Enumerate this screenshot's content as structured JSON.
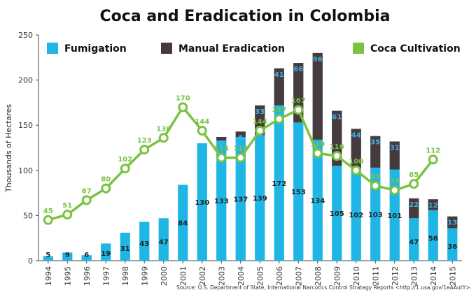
{
  "chart_data": {
    "type": "bar",
    "title": "Coca and Eradication in Colombia",
    "ylabel": "Thousands of Hectares",
    "xlabel": "",
    "ylim": [
      0,
      250
    ],
    "yticks": [
      0,
      50,
      100,
      150,
      200,
      250
    ],
    "categories": [
      "1994",
      "1995",
      "1996",
      "1997",
      "1998",
      "1999",
      "2000",
      "2001",
      "2002",
      "2003",
      "2004",
      "2005",
      "2006",
      "2007",
      "2008",
      "2009",
      "2010",
      "2011",
      "2012",
      "2013",
      "2014",
      "2015"
    ],
    "series": [
      {
        "name": "Fumigation",
        "kind": "bar-stack-bottom",
        "color": "#1fb6e6",
        "values": [
          5,
          9,
          6,
          19,
          31,
          43,
          47,
          84,
          130,
          133,
          137,
          139,
          172,
          153,
          134,
          105,
          102,
          103,
          101,
          47,
          56,
          36
        ],
        "labels": [
          "5",
          "9",
          "6",
          "19",
          "31",
          "43",
          "47",
          "84",
          "130",
          "133",
          "137",
          "139",
          "172",
          "153",
          "134",
          "105",
          "102",
          "103",
          "101",
          "47",
          "56",
          "36"
        ]
      },
      {
        "name": "Manual Eradication",
        "kind": "bar-stack-top",
        "color": "#453a3d",
        "values": [
          0,
          0,
          0,
          0,
          0,
          0,
          0,
          0,
          0,
          4,
          6,
          33,
          41,
          66,
          96,
          61,
          44,
          35,
          31,
          22,
          12,
          13
        ],
        "labels": [
          "",
          "",
          "",
          "",
          "",
          "",
          "",
          "",
          "",
          "4",
          "6",
          "33",
          "41",
          "66",
          "96",
          "61",
          "44",
          "35",
          "31",
          "22",
          "12",
          "13"
        ]
      },
      {
        "name": "Coca Cultivation",
        "kind": "line",
        "color": "#7cc242",
        "values": [
          45,
          51,
          67,
          80,
          102,
          123,
          136,
          170,
          144,
          114,
          114,
          144,
          157,
          167,
          119,
          116,
          100,
          83,
          78,
          85,
          112,
          null
        ],
        "labels": [
          "45",
          "51",
          "67",
          "80",
          "102",
          "123",
          "136",
          "170",
          "144",
          "114",
          "114",
          "144",
          "157",
          "167",
          "119",
          "116",
          "100",
          "83",
          "78",
          "85",
          "112",
          ""
        ]
      }
    ],
    "legend": [
      "Fumigation",
      "Manual Eradication",
      "Coca Cultivation"
    ],
    "source": "Source: U.S. Department of State, International Narcotics Control Strategy Reports <http://1.usa.gov/1eAAutY>."
  }
}
